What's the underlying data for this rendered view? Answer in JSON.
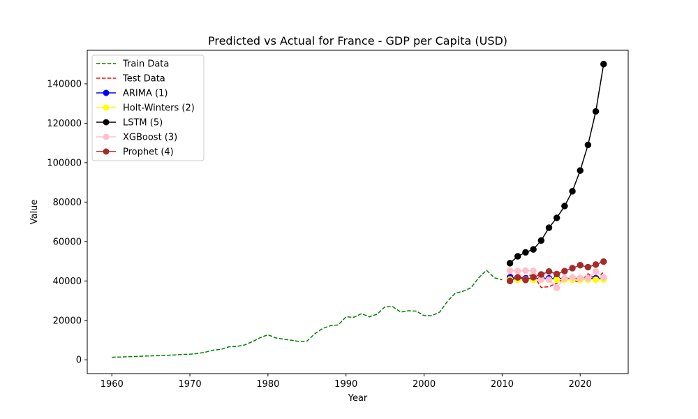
{
  "chart_data": {
    "type": "line",
    "title": "Predicted vs Actual for France - GDP per Capita (USD)",
    "xlabel": "Year",
    "ylabel": "Value",
    "xlim": [
      1956.85,
      2026.15
    ],
    "ylim": [
      -7000,
      157000
    ],
    "xticks": [
      1960,
      1970,
      1980,
      1990,
      2000,
      2010,
      2020
    ],
    "yticks": [
      0,
      20000,
      40000,
      60000,
      80000,
      100000,
      120000,
      140000
    ],
    "grid": false,
    "legend_position": "upper-left",
    "series": [
      {
        "name": "Train Data",
        "color": "#008000",
        "style": "dashed",
        "marker": false,
        "x": [
          1960,
          1961,
          1962,
          1963,
          1964,
          1965,
          1966,
          1967,
          1968,
          1969,
          1970,
          1971,
          1972,
          1973,
          1974,
          1975,
          1976,
          1977,
          1978,
          1979,
          1980,
          1981,
          1982,
          1983,
          1984,
          1985,
          1986,
          1987,
          1988,
          1989,
          1990,
          1991,
          1992,
          1993,
          1994,
          1995,
          1996,
          1997,
          1998,
          1999,
          2000,
          2001,
          2002,
          2003,
          2004,
          2005,
          2006,
          2007,
          2008,
          2009,
          2010
        ],
        "y": [
          1300,
          1400,
          1550,
          1700,
          1850,
          2000,
          2150,
          2300,
          2450,
          2700,
          2850,
          3200,
          3900,
          4900,
          5300,
          6600,
          6800,
          7500,
          9200,
          11200,
          12700,
          11100,
          10500,
          9900,
          9300,
          9500,
          13200,
          15900,
          17300,
          17700,
          21800,
          21600,
          23400,
          21800,
          23200,
          26900,
          26900,
          24200,
          24900,
          24700,
          22400,
          22400,
          24200,
          29700,
          33800,
          34800,
          36500,
          41600,
          45400,
          41600,
          40600
        ]
      },
      {
        "name": "Test Data",
        "color": "#ff0000",
        "style": "dashed",
        "marker": false,
        "x": [
          2011,
          2012,
          2013,
          2014,
          2015,
          2016,
          2017,
          2018,
          2019,
          2020,
          2021,
          2022,
          2023
        ],
        "y": [
          43800,
          40900,
          42600,
          43100,
          36700,
          37100,
          38800,
          41600,
          40500,
          39200,
          43700,
          40900,
          44500
        ]
      },
      {
        "name": "ARIMA (1)",
        "color": "#0000ff",
        "style": "solid",
        "marker": true,
        "x": [
          2011,
          2012,
          2013,
          2014,
          2015,
          2016,
          2017,
          2018,
          2019,
          2020,
          2021,
          2022,
          2023
        ],
        "y": [
          41800,
          41200,
          41300,
          41100,
          41400,
          41300,
          41300,
          41300,
          41300,
          41300,
          41300,
          41400,
          41300
        ]
      },
      {
        "name": "Holt-Winters (2)",
        "color": "#ffff00",
        "style": "solid",
        "marker": true,
        "x": [
          2011,
          2012,
          2013,
          2014,
          2015,
          2016,
          2017,
          2018,
          2019,
          2020,
          2021,
          2022,
          2023
        ],
        "y": [
          40800,
          40600,
          40700,
          40600,
          40700,
          40600,
          40700,
          40600,
          40700,
          40600,
          40700,
          40600,
          40700
        ]
      },
      {
        "name": "LSTM (5)",
        "color": "#000000",
        "style": "solid",
        "marker": true,
        "x": [
          2011,
          2012,
          2013,
          2014,
          2015,
          2016,
          2017,
          2018,
          2019,
          2020,
          2021,
          2022,
          2023
        ],
        "y": [
          49000,
          52500,
          54500,
          56000,
          60500,
          67000,
          72000,
          78000,
          85500,
          96000,
          109000,
          126000,
          150000
        ]
      },
      {
        "name": "XGBoost (3)",
        "color": "#ffc0cb",
        "style": "solid",
        "marker": true,
        "x": [
          2011,
          2012,
          2013,
          2014,
          2015,
          2016,
          2017,
          2018,
          2019,
          2020,
          2021,
          2022,
          2023
        ],
        "y": [
          45200,
          45000,
          45200,
          45100,
          40800,
          40600,
          36500,
          41500,
          41800,
          41500,
          41300,
          44800,
          41800
        ]
      },
      {
        "name": "Prophet (4)",
        "color": "#a52a2a",
        "style": "solid",
        "marker": true,
        "x": [
          2011,
          2012,
          2013,
          2014,
          2015,
          2016,
          2017,
          2018,
          2019,
          2020,
          2021,
          2022,
          2023
        ],
        "y": [
          40000,
          41800,
          40500,
          41900,
          43300,
          44800,
          43500,
          45000,
          46500,
          48000,
          47000,
          48300,
          49800
        ]
      }
    ]
  }
}
